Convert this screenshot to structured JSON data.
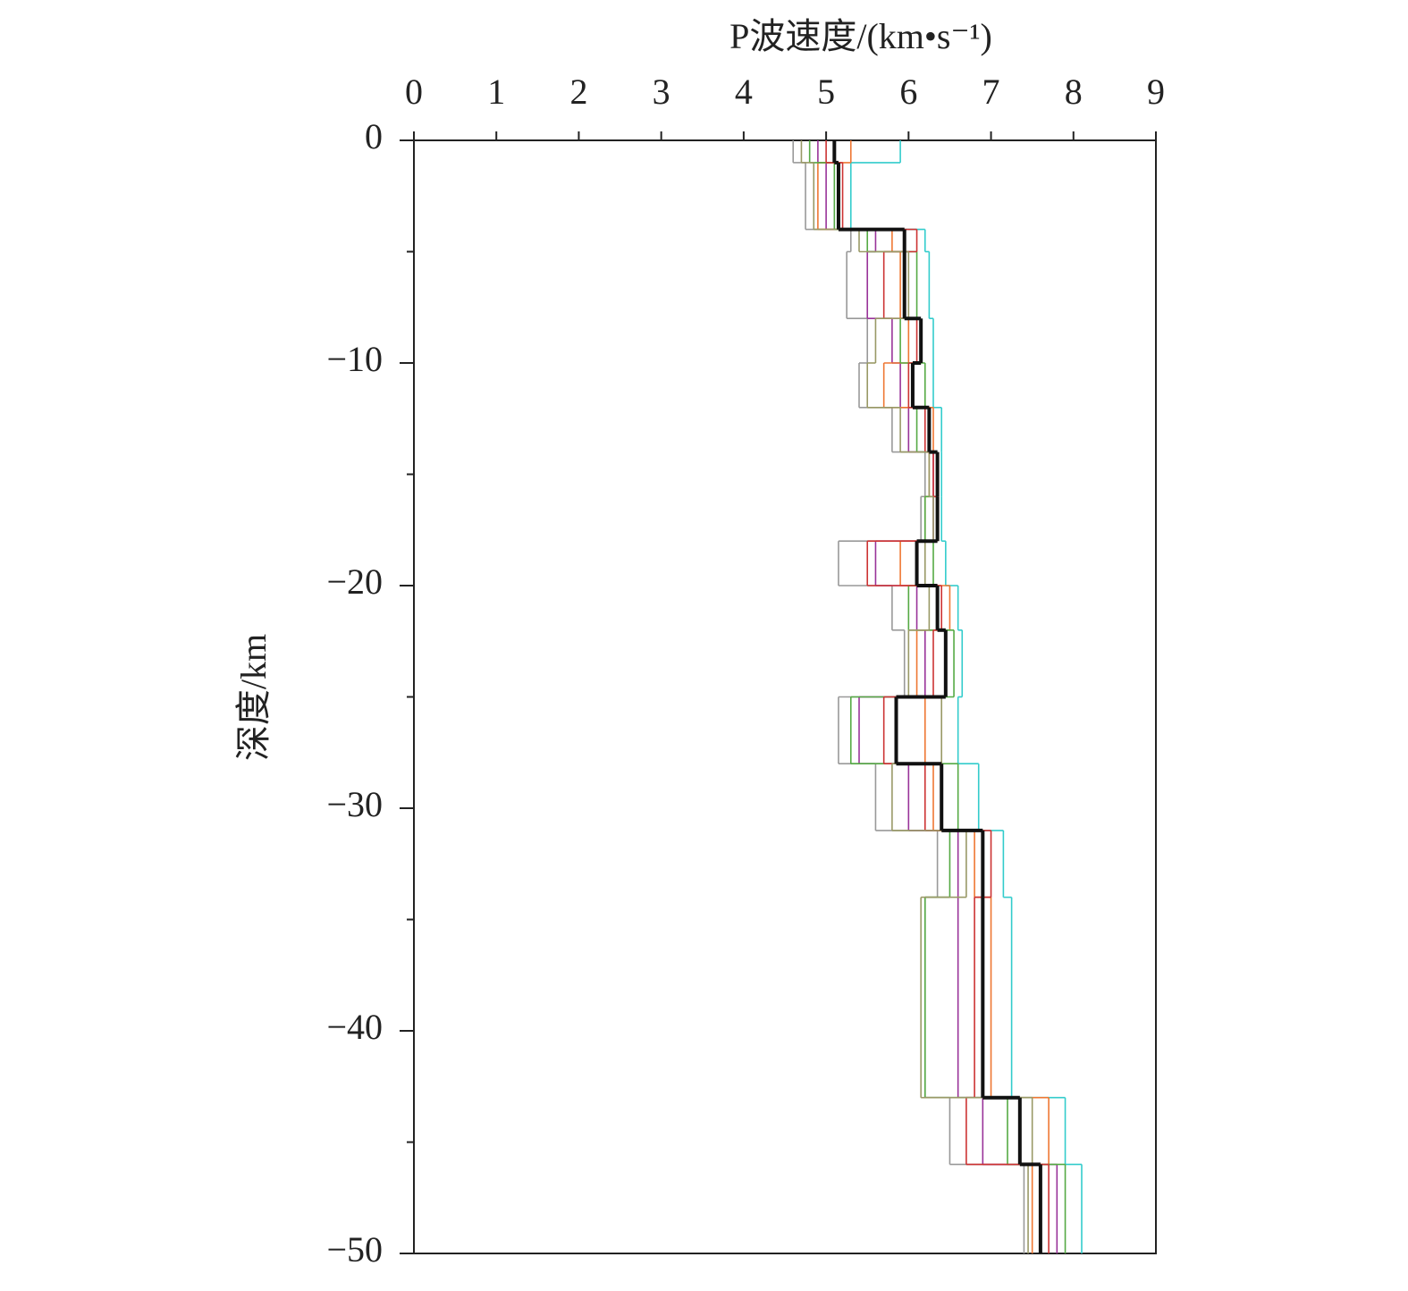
{
  "chart_data": {
    "type": "step",
    "xlabel": "P波速度/(km•s⁻¹)",
    "ylabel": "深度/km",
    "depths": [
      0,
      -1,
      -4,
      -5,
      -8,
      -10,
      -12,
      -14,
      -16,
      -18,
      -20,
      -22,
      -25,
      -28,
      -31,
      -34,
      -43,
      -46,
      -50
    ],
    "series": [
      {
        "color": "#999999",
        "values": [
          4.6,
          4.75,
          5.3,
          5.25,
          5.5,
          5.4,
          5.8,
          6.2,
          6.15,
          5.15,
          5.8,
          5.95,
          5.15,
          5.6,
          6.35,
          6.2,
          6.5,
          7.4
        ]
      },
      {
        "color": "#33cccc",
        "values": [
          5.9,
          5.3,
          6.2,
          6.25,
          6.3,
          6.3,
          6.4,
          6.4,
          6.4,
          6.45,
          6.6,
          6.65,
          6.6,
          6.85,
          7.15,
          7.25,
          7.9,
          8.1
        ]
      },
      {
        "color": "#993399",
        "values": [
          4.9,
          5.0,
          5.6,
          5.5,
          5.8,
          5.9,
          6.0,
          6.3,
          6.3,
          5.6,
          6.1,
          6.2,
          5.4,
          6.0,
          6.6,
          6.6,
          6.9,
          7.8
        ]
      },
      {
        "color": "#ee7733",
        "values": [
          5.3,
          4.9,
          5.8,
          5.9,
          6.0,
          5.7,
          6.3,
          6.25,
          6.2,
          5.9,
          6.5,
          6.1,
          6.2,
          6.3,
          6.8,
          7.0,
          7.7,
          7.5
        ]
      },
      {
        "color": "#55aa44",
        "values": [
          4.8,
          5.1,
          5.5,
          6.1,
          5.9,
          6.2,
          6.1,
          6.35,
          6.2,
          6.3,
          6.0,
          6.55,
          5.3,
          6.6,
          6.5,
          6.2,
          7.2,
          7.9
        ]
      },
      {
        "color": "#cc3333",
        "values": [
          5.0,
          5.2,
          6.1,
          5.7,
          6.1,
          6.0,
          6.2,
          6.3,
          6.35,
          5.5,
          6.4,
          6.3,
          5.7,
          6.2,
          7.0,
          6.8,
          6.7,
          7.7
        ]
      },
      {
        "color": "#999966",
        "values": [
          4.7,
          4.85,
          5.4,
          6.0,
          5.6,
          5.5,
          5.9,
          6.25,
          6.3,
          6.2,
          6.25,
          6.0,
          6.4,
          5.8,
          6.7,
          6.15,
          7.5,
          7.45
        ]
      },
      {
        "color": "#111111",
        "values": [
          5.1,
          5.15,
          5.95,
          5.95,
          6.15,
          6.05,
          6.25,
          6.35,
          6.35,
          6.1,
          6.35,
          6.45,
          5.85,
          6.4,
          6.9,
          6.9,
          7.35,
          7.6
        ]
      }
    ],
    "xlim": [
      0,
      9
    ],
    "xticks": [
      0,
      1,
      2,
      3,
      4,
      5,
      6,
      7,
      8,
      9
    ],
    "ylim": [
      -50,
      0
    ],
    "yticks": [
      0,
      {
        "value": -10,
        "label": "−10"
      },
      {
        "value": -20,
        "label": "−20"
      },
      {
        "value": -30,
        "label": "−30"
      },
      {
        "value": -40,
        "label": "−40"
      },
      {
        "value": -50,
        "label": "−50"
      }
    ],
    "yminorticks": [
      -5,
      -15,
      -25,
      -35,
      -45
    ]
  }
}
